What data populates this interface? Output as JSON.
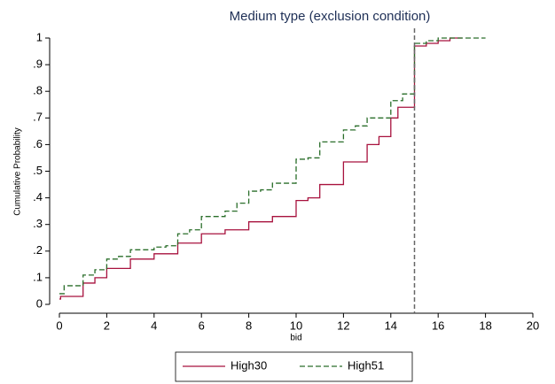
{
  "chart_data": {
    "type": "step",
    "title": "Medium type (exclusion condition)",
    "x_label": "bid",
    "y_label": "Cumulative Probability",
    "xlim": [
      0,
      20
    ],
    "xticks": [
      0,
      2,
      4,
      6,
      8,
      10,
      12,
      14,
      16,
      18,
      20
    ],
    "ylim": [
      0,
      1
    ],
    "yticks": [
      0,
      {
        "value": 0.1,
        "label": ".1"
      },
      {
        "value": 0.2,
        "label": ".2"
      },
      {
        "value": 0.3,
        "label": ".3"
      },
      {
        "value": 0.4,
        "label": ".4"
      },
      {
        "value": 0.5,
        "label": ".5"
      },
      {
        "value": 0.6,
        "label": ".6"
      },
      {
        "value": 0.7,
        "label": ".7"
      },
      {
        "value": 0.8,
        "label": ".8"
      },
      {
        "value": 0.9,
        "label": ".9"
      },
      1
    ],
    "grid": false,
    "xline": 15,
    "series": [
      {
        "name": "High30",
        "color": "#a8123e",
        "dash": false,
        "x": [
          0,
          0.05,
          1,
          1.5,
          2,
          3,
          4,
          5,
          6,
          7,
          8,
          9,
          10,
          10.5,
          11,
          12,
          13,
          13.5,
          14,
          14.3,
          15,
          15.5,
          16,
          16.5,
          17
        ],
        "values": [
          0.02,
          0.03,
          0.08,
          0.1,
          0.135,
          0.17,
          0.19,
          0.23,
          0.265,
          0.28,
          0.31,
          0.33,
          0.39,
          0.4,
          0.45,
          0.535,
          0.6,
          0.63,
          0.7,
          0.74,
          0.97,
          0.98,
          0.99,
          1.0,
          1.0
        ]
      },
      {
        "name": "High51",
        "color": "#2a6e2a",
        "dash": true,
        "x": [
          0,
          0.2,
          1,
          1.5,
          2,
          2.5,
          3,
          4,
          4.5,
          5,
          5.5,
          6,
          7,
          7.5,
          8,
          8.5,
          9,
          10,
          10.5,
          11,
          12,
          12.5,
          13,
          14,
          14.5,
          15,
          15.5,
          16,
          18
        ],
        "values": [
          0.04,
          0.07,
          0.11,
          0.13,
          0.17,
          0.18,
          0.205,
          0.215,
          0.22,
          0.265,
          0.28,
          0.33,
          0.35,
          0.38,
          0.425,
          0.43,
          0.455,
          0.545,
          0.55,
          0.61,
          0.655,
          0.67,
          0.7,
          0.765,
          0.79,
          0.98,
          0.99,
          1.0,
          1.0
        ]
      }
    ]
  }
}
